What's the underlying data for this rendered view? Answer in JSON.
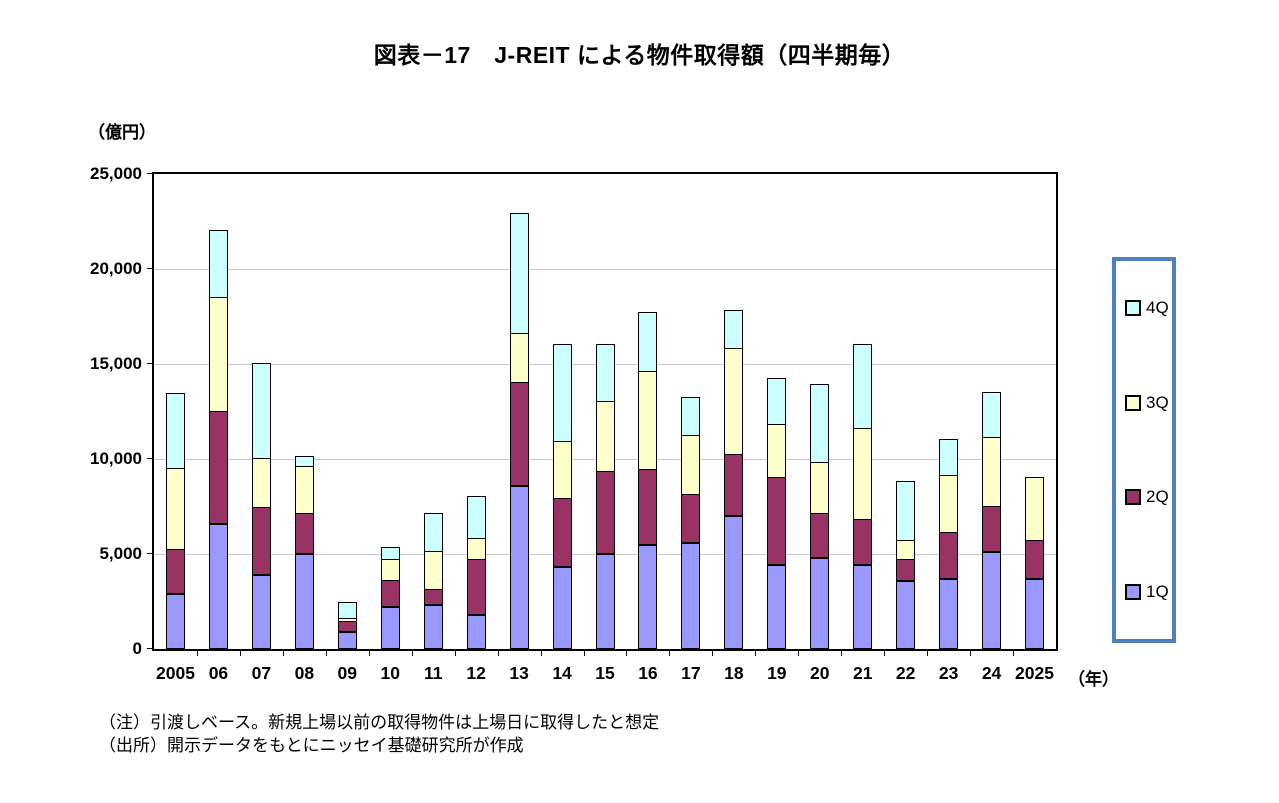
{
  "title": "図表－17　J-REIT による物件取得額（四半期毎）",
  "y_unit_label": "（億円）",
  "x_unit_label": "（年）",
  "notes": {
    "line1": "（注）引渡しベース。新規上場以前の取得物件は上場日に取得したと想定",
    "line2": "（出所）開示データをもとにニッセイ基礎研究所が作成"
  },
  "colors": {
    "background": "#FFFFFF",
    "plot_border": "#000000",
    "gridline": "#C8C8C8",
    "legend_border": "#4F81BD",
    "bar_border": "#000000"
  },
  "chart_data": {
    "type": "bar",
    "stacked": true,
    "title": "図表－17　J-REIT による物件取得額（四半期毎）",
    "ylabel": "（億円）",
    "xlabel": "（年）",
    "grid": true,
    "legend_position": "right",
    "legend_order": [
      "4Q",
      "3Q",
      "2Q",
      "1Q"
    ],
    "ylim": [
      0,
      25000
    ],
    "ytick_interval": 5000,
    "yticks": [
      "0",
      "5,000",
      "10,000",
      "15,000",
      "20,000",
      "25,000"
    ],
    "categories": [
      "2005",
      "06",
      "07",
      "08",
      "09",
      "10",
      "11",
      "12",
      "13",
      "14",
      "15",
      "16",
      "17",
      "18",
      "19",
      "20",
      "21",
      "22",
      "23",
      "24",
      "2025"
    ],
    "series": [
      {
        "name": "1Q",
        "color": "#9999FF",
        "values": [
          2900,
          6600,
          3900,
          5000,
          900,
          2200,
          2300,
          1800,
          8600,
          4300,
          5000,
          5500,
          5600,
          7000,
          4400,
          4800,
          4400,
          3600,
          3700,
          5100,
          3700
        ]
      },
      {
        "name": "2Q",
        "color": "#993366",
        "values": [
          2300,
          5900,
          3500,
          2100,
          500,
          1400,
          800,
          2900,
          5400,
          3600,
          4300,
          3900,
          2500,
          3200,
          4600,
          2300,
          2400,
          1100,
          2400,
          2400,
          2000
        ]
      },
      {
        "name": "3Q",
        "color": "#FFFFCC",
        "values": [
          4300,
          6000,
          2600,
          2500,
          200,
          1100,
          2000,
          1100,
          2600,
          3000,
          3700,
          5200,
          3100,
          5600,
          2800,
          2700,
          4800,
          1000,
          3000,
          3600,
          3300
        ]
      },
      {
        "name": "4Q",
        "color": "#CCFFFF",
        "values": [
          3900,
          3500,
          5000,
          500,
          800,
          600,
          2000,
          2200,
          6300,
          5100,
          3000,
          3100,
          2000,
          2000,
          2400,
          4100,
          4400,
          3100,
          1900,
          2400,
          0
        ]
      }
    ]
  }
}
